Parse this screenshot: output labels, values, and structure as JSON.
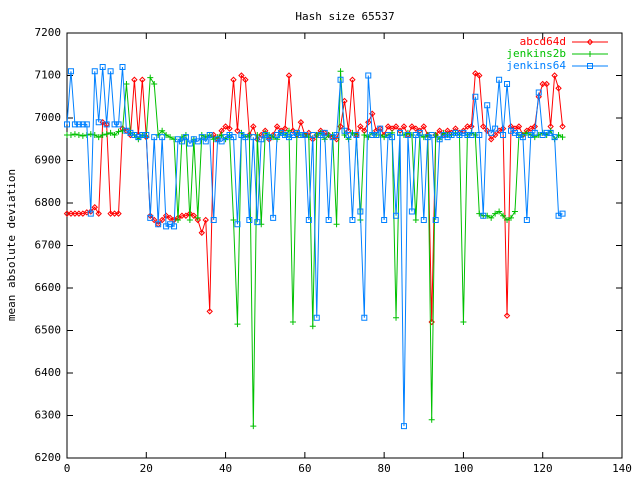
{
  "chart_data": {
    "type": "line",
    "title": "Hash size 65537",
    "y_label": "mean absolute deviation",
    "x": [
      0,
      1,
      2,
      3,
      4,
      5,
      6,
      7,
      8,
      9,
      10,
      11,
      12,
      13,
      14,
      15,
      16,
      17,
      18,
      19,
      20,
      21,
      22,
      23,
      24,
      25,
      26,
      27,
      28,
      29,
      30,
      31,
      32,
      33,
      34,
      35,
      36,
      37,
      38,
      39,
      40,
      41,
      42,
      43,
      44,
      45,
      46,
      47,
      48,
      49,
      50,
      51,
      52,
      53,
      54,
      55,
      56,
      57,
      58,
      59,
      60,
      61,
      62,
      63,
      64,
      65,
      66,
      67,
      68,
      69,
      70,
      71,
      72,
      73,
      74,
      75,
      76,
      77,
      78,
      79,
      80,
      81,
      82,
      83,
      84,
      85,
      86,
      87,
      88,
      89,
      90,
      91,
      92,
      93,
      94,
      95,
      96,
      97,
      98,
      99,
      100,
      101,
      102,
      103,
      104,
      105,
      106,
      107,
      108,
      109,
      110,
      111,
      112,
      113,
      114,
      115,
      116,
      117,
      118,
      119,
      120,
      121,
      122,
      123,
      124,
      125
    ],
    "series": [
      {
        "name": "abcd64d",
        "color": "#ff0000",
        "marker": "diamond",
        "values": [
          6775,
          6775,
          6775,
          6775,
          6775,
          6778,
          6780,
          6790,
          6775,
          6990,
          6985,
          6775,
          6775,
          6775,
          6975,
          6970,
          6960,
          7090,
          6960,
          7090,
          6955,
          6770,
          6760,
          6750,
          6760,
          6770,
          6765,
          6760,
          6765,
          6770,
          6770,
          6775,
          6770,
          6760,
          6730,
          6760,
          6545,
          6960,
          6950,
          6970,
          6980,
          6975,
          7090,
          6970,
          7100,
          7090,
          6960,
          6980,
          6950,
          6960,
          6970,
          6950,
          6960,
          6980,
          6970,
          6975,
          7100,
          6970,
          6960,
          6990,
          6960,
          6965,
          6950,
          6960,
          6970,
          6965,
          6960,
          6955,
          6950,
          6980,
          7040,
          6970,
          7090,
          6960,
          6980,
          6970,
          6990,
          7010,
          6970,
          6975,
          6960,
          6980,
          6975,
          6980,
          6970,
          6980,
          6960,
          6980,
          6975,
          6970,
          6980,
          6960,
          6520,
          6960,
          6970,
          6960,
          6970,
          6965,
          6975,
          6965,
          6970,
          6980,
          6980,
          7105,
          7100,
          6980,
          6970,
          6950,
          6960,
          6970,
          6975,
          6535,
          6980,
          6975,
          6980,
          6960,
          6970,
          6975,
          6980,
          7050,
          7080,
          7080,
          6980,
          7100,
          7070,
          6980
        ]
      },
      {
        "name": "jenkins2b",
        "color": "#00c000",
        "marker": "plus",
        "values": [
          6960,
          6960,
          6962,
          6960,
          6958,
          6960,
          6962,
          6960,
          6955,
          6960,
          6962,
          6965,
          6960,
          6968,
          6970,
          7080,
          6965,
          6960,
          6950,
          6960,
          6955,
          7095,
          7080,
          6960,
          6970,
          6960,
          6955,
          6950,
          6760,
          6955,
          6960,
          6760,
          6950,
          6765,
          6960,
          6955,
          6960,
          6950,
          6955,
          6960,
          6950,
          6960,
          6760,
          6515,
          6965,
          6955,
          6960,
          6275,
          6960,
          6750,
          6965,
          6960,
          6955,
          6950,
          6965,
          6960,
          6970,
          6520,
          6965,
          6960,
          6960,
          6955,
          6510,
          6960,
          6965,
          6950,
          6960,
          6960,
          6750,
          7110,
          6960,
          6950,
          6965,
          6960,
          6760,
          6960,
          6955,
          6965,
          6960,
          6960,
          6955,
          6960,
          6965,
          6530,
          6960,
          6960,
          6965,
          6960,
          6760,
          6960,
          6955,
          6960,
          6290,
          6960,
          6950,
          6965,
          6960,
          6960,
          6965,
          6960,
          6520,
          6960,
          6965,
          6960,
          6775,
          6770,
          6770,
          6765,
          6775,
          6780,
          6770,
          6760,
          6765,
          6780,
          6960,
          6960,
          6965,
          6960,
          6955,
          6960,
          6965,
          6960,
          6970,
          6950,
          6960,
          6955
        ]
      },
      {
        "name": "jenkins64",
        "color": "#0080ff",
        "marker": "square",
        "values": [
          6985,
          7110,
          6985,
          6985,
          6985,
          6985,
          6775,
          7110,
          6990,
          7120,
          6985,
          7110,
          6985,
          6985,
          7120,
          6970,
          6965,
          6960,
          6955,
          6960,
          6960,
          6765,
          6955,
          6750,
          6955,
          6745,
          6750,
          6745,
          6950,
          6945,
          6955,
          6940,
          6950,
          6945,
          6955,
          6945,
          6960,
          6760,
          6950,
          6945,
          6955,
          6960,
          6955,
          6750,
          6960,
          6955,
          6760,
          6955,
          6755,
          6950,
          6960,
          6955,
          6765,
          6960,
          6965,
          6960,
          6955,
          6960,
          6965,
          6960,
          6960,
          6760,
          6960,
          6530,
          6960,
          6965,
          6760,
          6955,
          6960,
          7090,
          6970,
          6960,
          6760,
          6960,
          6780,
          6530,
          7100,
          6960,
          6960,
          6975,
          6760,
          6960,
          6955,
          6770,
          6965,
          6275,
          6960,
          6780,
          6960,
          6965,
          6760,
          6955,
          6960,
          6760,
          6950,
          6960,
          6955,
          6960,
          6965,
          6960,
          6965,
          6960,
          6960,
          7050,
          6960,
          6770,
          7030,
          6965,
          6975,
          7090,
          6960,
          7080,
          6970,
          6965,
          6960,
          6955,
          6760,
          6960,
          6965,
          7060,
          6960,
          6965,
          6965,
          6955,
          6770,
          6775
        ]
      }
    ],
    "xlim": [
      0,
      140
    ],
    "xticks": [
      0,
      20,
      40,
      60,
      80,
      100,
      120,
      140
    ],
    "ylim": [
      6200,
      7200
    ],
    "yticks": [
      6200,
      6300,
      6400,
      6500,
      6600,
      6700,
      6800,
      6900,
      7000,
      7100,
      7200
    ],
    "grid": false,
    "legend": "upper right"
  }
}
